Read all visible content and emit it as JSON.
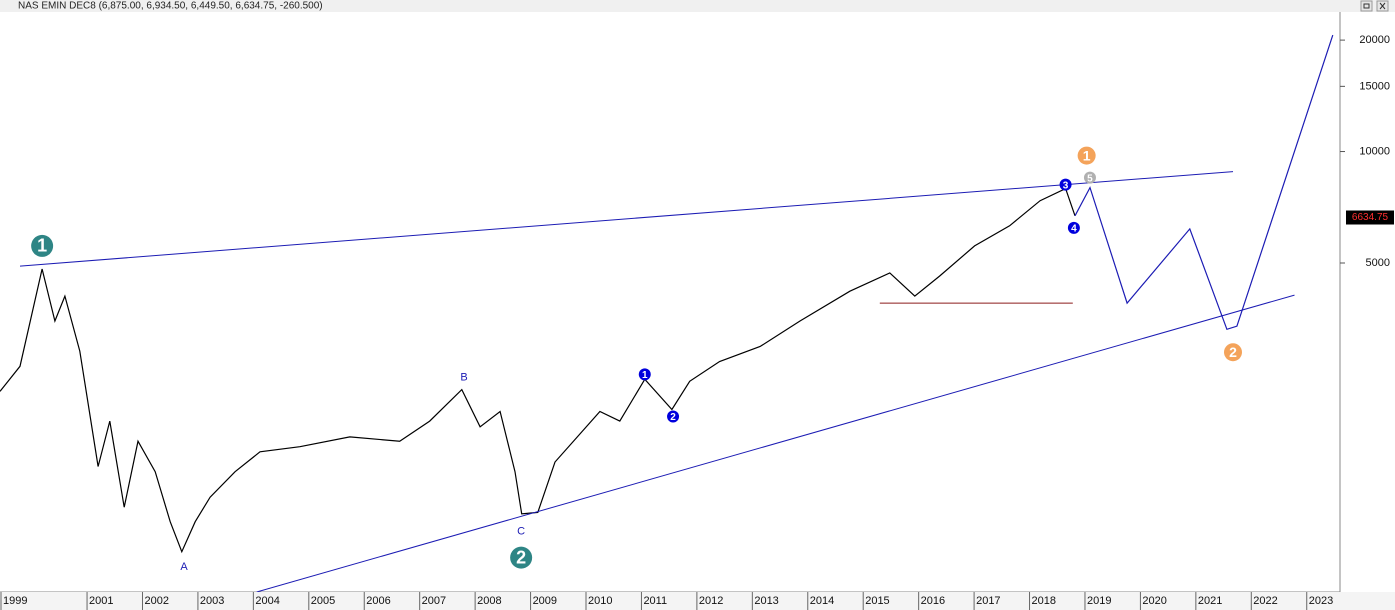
{
  "chart_data": {
    "type": "line",
    "title": "NAS EMIN DEC8 (6,875.00, 6,934.50, 6,449.50, 6,634.75, -260.500)",
    "log_scale": true,
    "xlim": [
      1999.43,
      2023.6
    ],
    "xticks": [
      1999,
      2001,
      2002,
      2003,
      2004,
      2005,
      2006,
      2007,
      2008,
      2009,
      2010,
      2011,
      2012,
      2013,
      2014,
      2015,
      2016,
      2017,
      2018,
      2019,
      2020,
      2021,
      2022,
      2023
    ],
    "ylim": [
      646,
      23820
    ],
    "yticks": [
      5000,
      10000,
      15000,
      20000
    ],
    "last_price": 6634.75,
    "series": [
      {
        "color": "#000000",
        "width": 1.2,
        "x": [
          1999.43,
          1999.79,
          2000.19,
          2000.42,
          2000.6,
          2000.87,
          2001.2,
          2001.41,
          2001.67,
          2001.92,
          2002.23,
          2002.5,
          2002.71,
          2002.95,
          2003.22,
          2003.67,
          2004.12,
          2004.84,
          2005.74,
          2006.64,
          2007.18,
          2007.76,
          2008.09,
          2008.45,
          2008.72,
          2008.84,
          2009.13,
          2009.44,
          2010.25,
          2010.61,
          2011.06,
          2011.55,
          2011.87,
          2012.41,
          2013.14,
          2013.86,
          2014.76,
          2015.48,
          2015.93,
          2016.38,
          2017.01,
          2017.64,
          2018.19,
          2018.65,
          2018.82
        ],
        "values": [
          2250,
          2630,
          4816,
          3485,
          4070,
          2890,
          1410,
          1870,
          1095,
          1650,
          1365,
          1000,
          830,
          1000,
          1165,
          1365,
          1545,
          1595,
          1695,
          1650,
          1870,
          2275,
          1805,
          1985,
          1365,
          1050,
          1060,
          1450,
          1985,
          1870,
          2425,
          2010,
          2395,
          2710,
          2975,
          3485,
          4195,
          4700,
          4070,
          4610,
          5560,
          6300,
          7365,
          7940,
          6705
        ]
      },
      {
        "color": "#1c1cb4",
        "width": 1.2,
        "x": [
          2018.82,
          2019.09,
          2019.76,
          2020.89,
          2021.56,
          2021.74,
          2023.47
        ],
        "values": [
          6705,
          7990,
          3895,
          6180,
          3310,
          3375,
          20630
        ]
      },
      {
        "color": "#1c1cb4",
        "width": 1,
        "x": [
          1999.79,
          2021.67
        ],
        "values": [
          4905,
          8825
        ]
      },
      {
        "color": "#1c1cb4",
        "width": 1,
        "x": [
          2004.06,
          2022.78
        ],
        "values": [
          646,
          4095
        ]
      },
      {
        "color": "#8b1a1a",
        "width": 1,
        "x": [
          2015.3,
          2018.78
        ],
        "values": [
          3895,
          3895
        ]
      }
    ],
    "annotations": [
      {
        "label": "1",
        "x": 2000.19,
        "y": 5560,
        "style": "large",
        "color": "#2e8585"
      },
      {
        "label": "2",
        "x": 2008.83,
        "y": 800,
        "style": "large",
        "color": "#2e8585"
      },
      {
        "label": "A",
        "x": 2002.75,
        "y": 755,
        "style": "plain",
        "color": "#1c1cb4"
      },
      {
        "label": "B",
        "x": 2007.8,
        "y": 2450,
        "style": "plain",
        "color": "#1c1cb4"
      },
      {
        "label": "C",
        "x": 2008.83,
        "y": 940,
        "style": "plain",
        "color": "#1c1cb4"
      },
      {
        "label": "1",
        "x": 2011.06,
        "y": 2500,
        "style": "small",
        "color": "#0000dd"
      },
      {
        "label": "2",
        "x": 2011.57,
        "y": 1925,
        "style": "small",
        "color": "#0000dd"
      },
      {
        "label": "3",
        "x": 2018.65,
        "y": 8140,
        "style": "small",
        "color": "#0000dd"
      },
      {
        "label": "4",
        "x": 2018.8,
        "y": 6220,
        "style": "small",
        "color": "#0000dd"
      },
      {
        "label": "5",
        "x": 2019.09,
        "y": 8500,
        "style": "small",
        "color": "#b0b0b0"
      },
      {
        "label": "1",
        "x": 2019.03,
        "y": 9750,
        "style": "medium",
        "color": "#f4a35a"
      },
      {
        "label": "2",
        "x": 2021.67,
        "y": 2870,
        "style": "medium",
        "color": "#f4a35a"
      }
    ]
  }
}
